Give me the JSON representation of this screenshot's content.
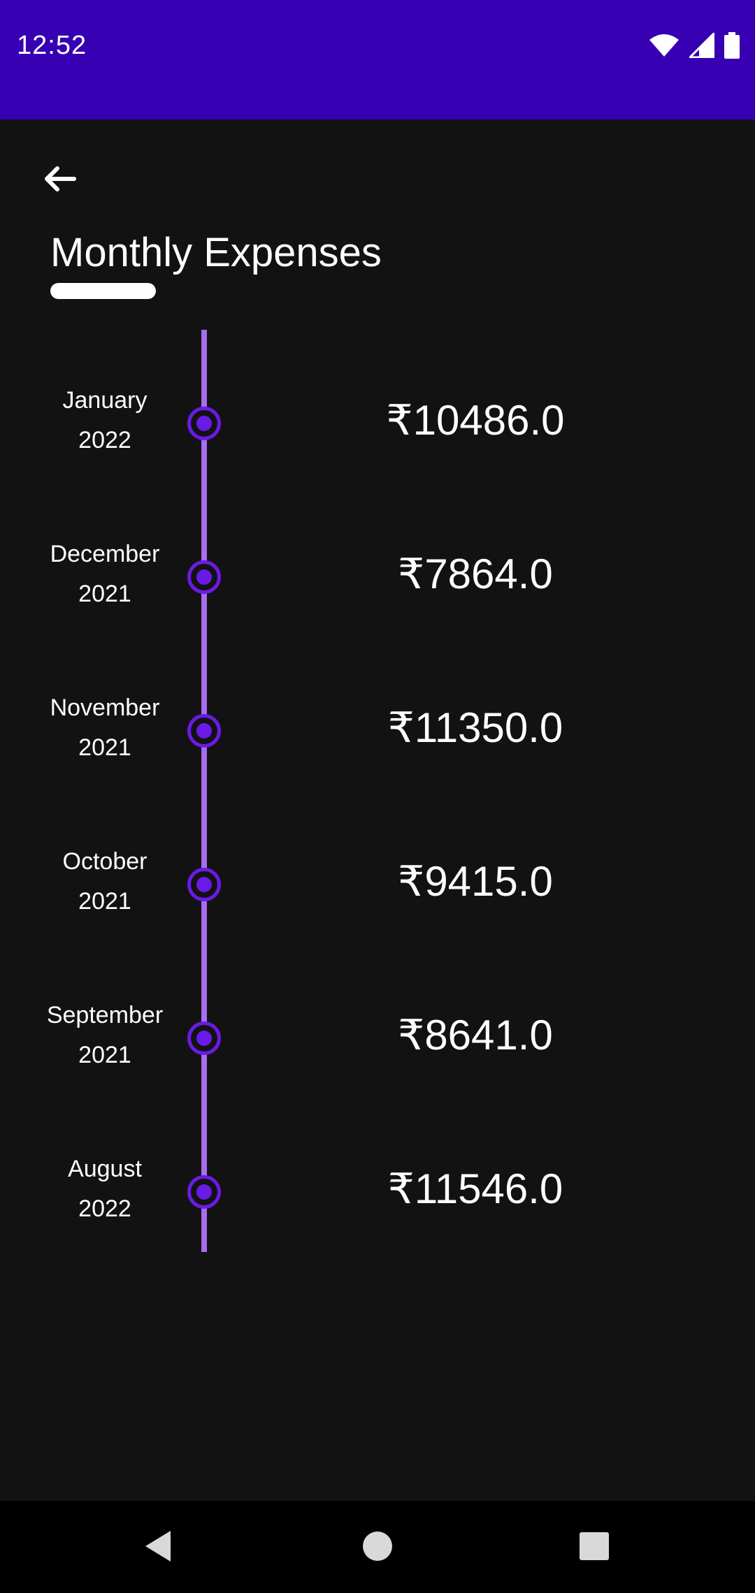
{
  "status_bar": {
    "time": "12:52",
    "icons": [
      "wifi-icon",
      "signal-icon",
      "battery-icon"
    ],
    "background": "#3700b3"
  },
  "header": {
    "back_icon": "arrow-left-icon",
    "title": "Monthly Expenses"
  },
  "timeline": {
    "line_color": "#a86df0",
    "dot_color": "#6a1ae6",
    "items": [
      {
        "month": "January",
        "year": "2022",
        "amount": "₹10486.0"
      },
      {
        "month": "December",
        "year": "2021",
        "amount": "₹7864.0"
      },
      {
        "month": "November",
        "year": "2021",
        "amount": "₹11350.0"
      },
      {
        "month": "October",
        "year": "2021",
        "amount": "₹9415.0"
      },
      {
        "month": "September",
        "year": "2021",
        "amount": "₹8641.0"
      },
      {
        "month": "August",
        "year": "2022",
        "amount": "₹11546.0"
      }
    ]
  },
  "nav_bar": {
    "icons": [
      "back-triangle-icon",
      "home-circle-icon",
      "recents-square-icon"
    ]
  }
}
